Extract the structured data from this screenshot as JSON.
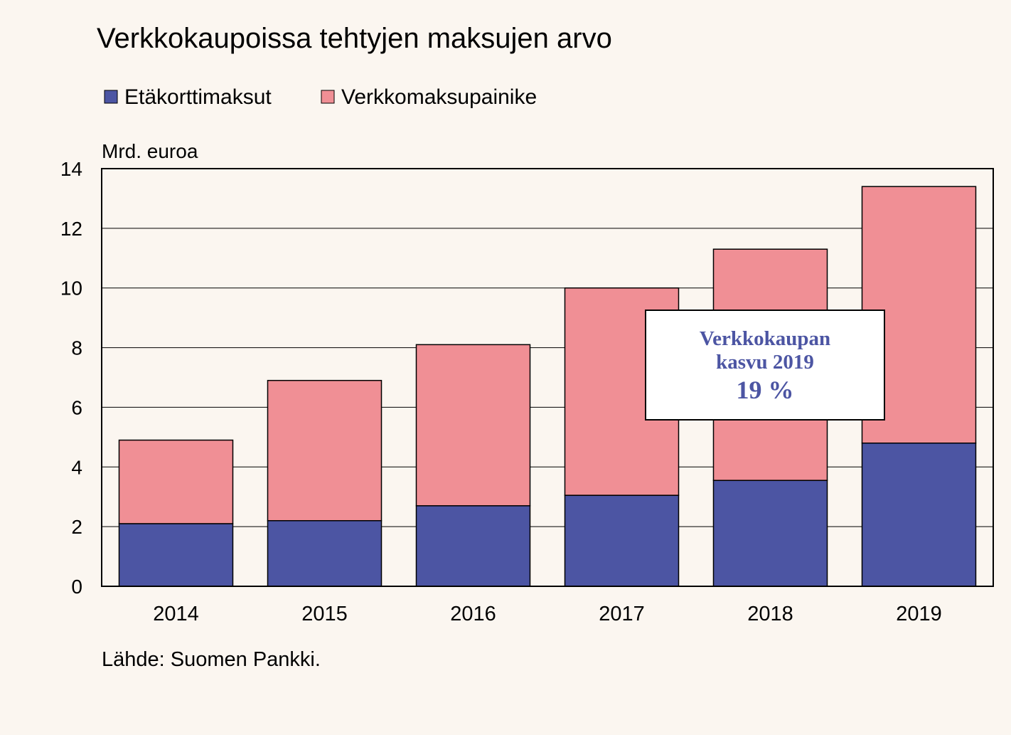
{
  "colors": {
    "background": "#FBF6F0",
    "series_1": "#4C55A3",
    "series_2": "#F08F95",
    "callout_text": "#4C55A3"
  },
  "chart_data": {
    "type": "bar",
    "stacked": true,
    "title": "Verkkokaupoissa tehtyjen maksujen arvo",
    "ylabel": "Mrd. euroa",
    "xlabel": "",
    "categories": [
      "2014",
      "2015",
      "2016",
      "2017",
      "2018",
      "2019"
    ],
    "series": [
      {
        "name": "Etäkorttimaksut",
        "values": [
          2.1,
          2.2,
          2.7,
          3.05,
          3.55,
          4.8
        ]
      },
      {
        "name": "Verkkomaksupainike",
        "values": [
          2.8,
          4.7,
          5.4,
          6.95,
          7.75,
          8.6
        ]
      }
    ],
    "ylim": [
      0,
      14
    ],
    "yticks": [
      "0",
      "2",
      "4",
      "6",
      "8",
      "10",
      "12",
      "14"
    ],
    "grid": true,
    "legend_position": "top-left",
    "annotation": {
      "lines": [
        "Verkkokaupan",
        "kasvu 2019",
        "19 %"
      ]
    },
    "source": "Lähde:  Suomen  Pankki."
  }
}
